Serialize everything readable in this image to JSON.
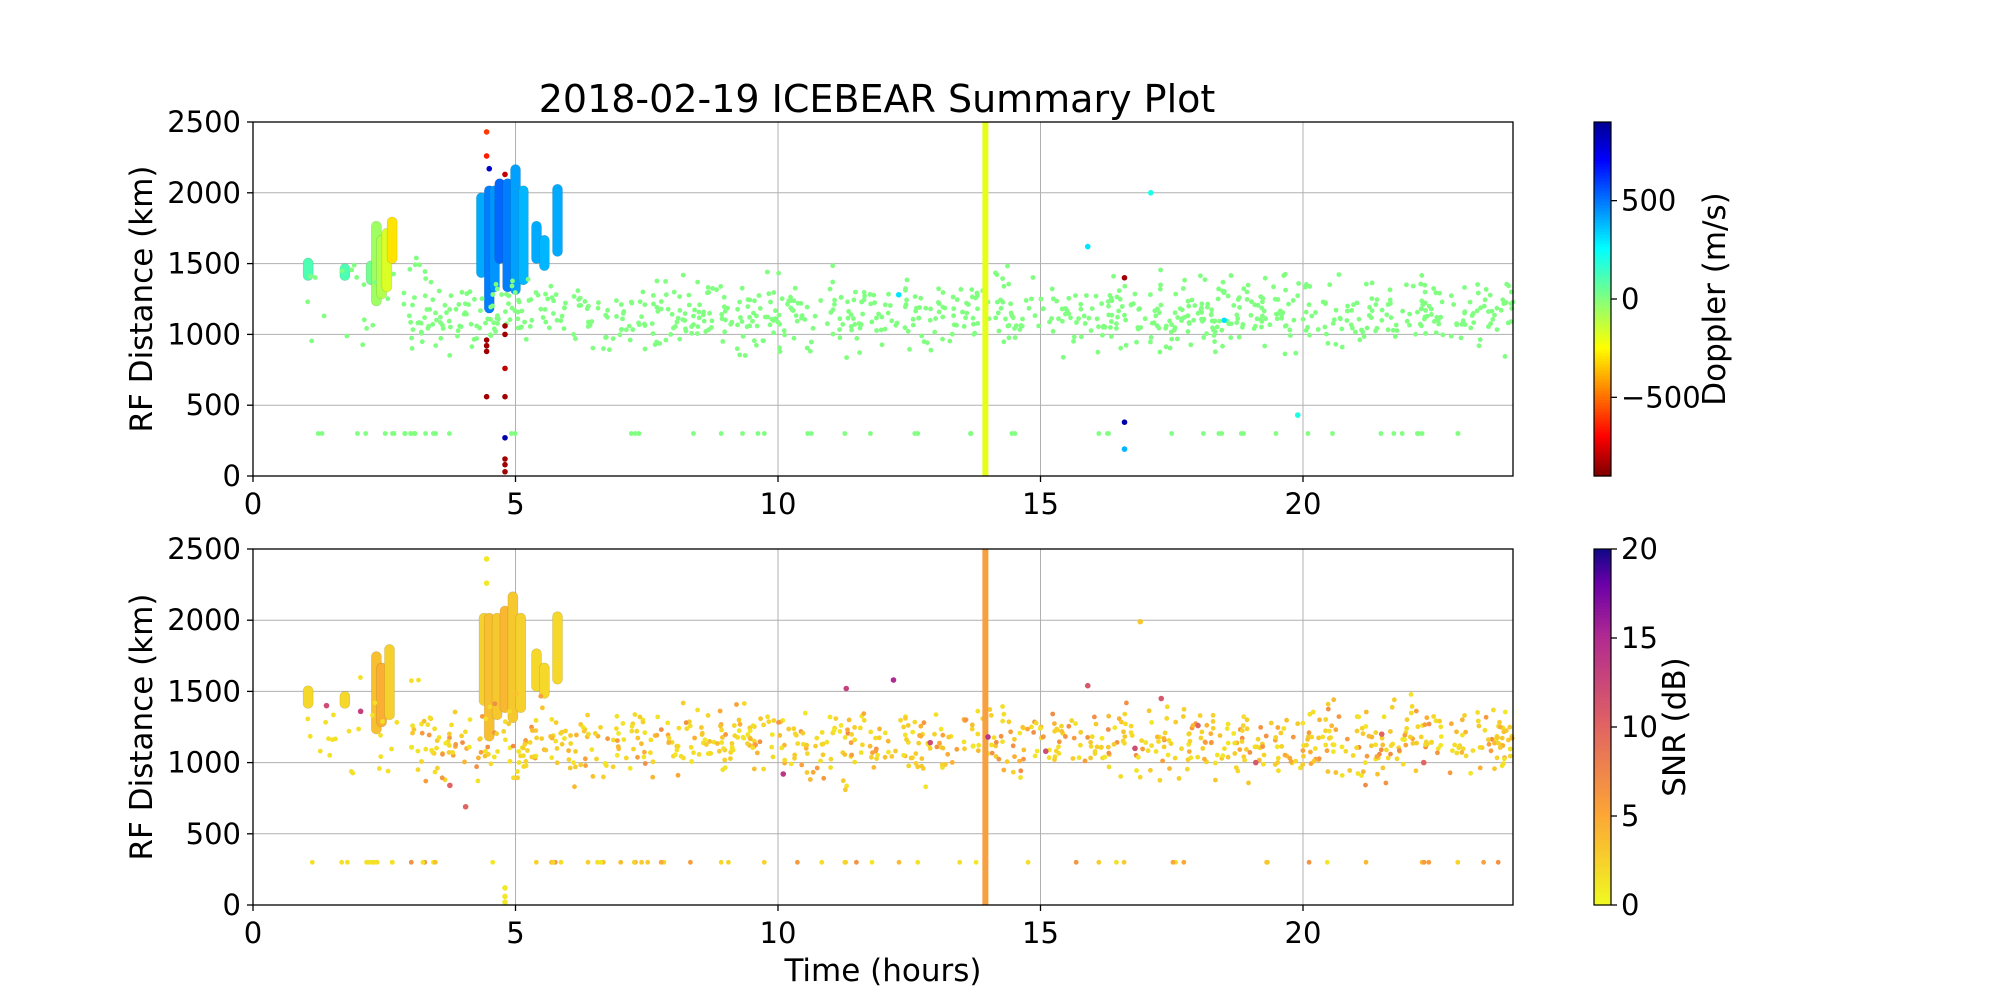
{
  "chart_data": [
    {
      "type": "scatter",
      "title": "2018-02-19 ICEBEAR Summary Plot",
      "xlabel": "",
      "ylabel": "RF Distance (km)",
      "xlim": [
        0,
        24
      ],
      "ylim": [
        0,
        2500
      ],
      "xticks": [
        0,
        5,
        10,
        15,
        20
      ],
      "yticks": [
        0,
        500,
        1000,
        1500,
        2000,
        2500
      ],
      "grid": true,
      "colormap": "jet_r",
      "colorbar": {
        "label": "Doppler (m/s)",
        "range": [
          -900,
          900
        ],
        "ticks": [
          -500,
          0,
          500
        ],
        "tick_labels": [
          "−500",
          "0",
          "500"
        ]
      },
      "background_color": "#80ff80",
      "vertical_line": {
        "x": 13.95,
        "color": "#e6ff1a"
      },
      "clusters": [
        {
          "x": 1.05,
          "ymin": 1380,
          "ymax": 1540,
          "value": 100
        },
        {
          "x": 1.75,
          "ymin": 1380,
          "ymax": 1500,
          "value": 100
        },
        {
          "x": 2.25,
          "ymin": 1350,
          "ymax": 1520,
          "value": 30
        },
        {
          "x": 2.35,
          "ymin": 1200,
          "ymax": 1800,
          "value": -60
        },
        {
          "x": 2.45,
          "ymin": 1250,
          "ymax": 1700,
          "value": -100
        },
        {
          "x": 2.55,
          "ymin": 1300,
          "ymax": 1750,
          "value": -180
        },
        {
          "x": 2.65,
          "ymin": 1500,
          "ymax": 1830,
          "value": -300
        },
        {
          "x": 4.35,
          "ymin": 1400,
          "ymax": 2000,
          "value": 400
        },
        {
          "x": 4.5,
          "ymin": 1150,
          "ymax": 2050,
          "value": 480
        },
        {
          "x": 4.6,
          "ymin": 1300,
          "ymax": 2050,
          "value": 440
        },
        {
          "x": 4.7,
          "ymin": 1500,
          "ymax": 2100,
          "value": 520
        },
        {
          "x": 4.85,
          "ymin": 1300,
          "ymax": 2100,
          "value": 480
        },
        {
          "x": 5.0,
          "ymin": 1280,
          "ymax": 2200,
          "value": 420
        },
        {
          "x": 5.15,
          "ymin": 1350,
          "ymax": 2050,
          "value": 380
        },
        {
          "x": 5.4,
          "ymin": 1500,
          "ymax": 1800,
          "value": 400
        },
        {
          "x": 5.55,
          "ymin": 1450,
          "ymax": 1700,
          "value": 380
        },
        {
          "x": 5.8,
          "ymin": 1550,
          "ymax": 2060,
          "value": 400
        }
      ],
      "points": [
        {
          "x": 4.45,
          "y": 2430,
          "value": -600
        },
        {
          "x": 4.45,
          "y": 2260,
          "value": -650
        },
        {
          "x": 4.5,
          "y": 2170,
          "value": 800
        },
        {
          "x": 4.45,
          "y": 960,
          "value": -850
        },
        {
          "x": 4.45,
          "y": 920,
          "value": -850
        },
        {
          "x": 4.45,
          "y": 880,
          "value": -850
        },
        {
          "x": 4.45,
          "y": 560,
          "value": -850
        },
        {
          "x": 4.8,
          "y": 2130,
          "value": -800
        },
        {
          "x": 4.8,
          "y": 1060,
          "value": -850
        },
        {
          "x": 4.8,
          "y": 1000,
          "value": -850
        },
        {
          "x": 4.8,
          "y": 760,
          "value": -800
        },
        {
          "x": 4.8,
          "y": 560,
          "value": -850
        },
        {
          "x": 4.8,
          "y": 270,
          "value": 850
        },
        {
          "x": 4.8,
          "y": 120,
          "value": -850
        },
        {
          "x": 4.8,
          "y": 80,
          "value": -850
        },
        {
          "x": 4.8,
          "y": 30,
          "value": -850
        },
        {
          "x": 16.6,
          "y": 1400,
          "value": -850
        },
        {
          "x": 16.6,
          "y": 380,
          "value": 850
        },
        {
          "x": 16.6,
          "y": 190,
          "value": 380
        },
        {
          "x": 17.1,
          "y": 2000,
          "value": 200
        },
        {
          "x": 15.9,
          "y": 1620,
          "value": 300
        },
        {
          "x": 18.5,
          "y": 1100,
          "value": 300
        },
        {
          "x": 19.9,
          "y": 430,
          "value": 200
        },
        {
          "x": 12.3,
          "y": 1280,
          "value": 300
        }
      ]
    },
    {
      "type": "scatter",
      "title": "",
      "xlabel": "Time (hours)",
      "ylabel": "RF Distance (km)",
      "xlim": [
        0,
        24
      ],
      "ylim": [
        0,
        2500
      ],
      "xticks": [
        0,
        5,
        10,
        15,
        20
      ],
      "yticks": [
        0,
        500,
        1000,
        1500,
        2000,
        2500
      ],
      "grid": true,
      "colormap": "plasma_r",
      "colorbar": {
        "label": "SNR (dB)",
        "range": [
          0,
          20
        ],
        "ticks": [
          0,
          5,
          10,
          15,
          20
        ],
        "tick_labels": [
          "0",
          "5",
          "10",
          "15",
          "20"
        ]
      },
      "vertical_line": {
        "x": 13.95,
        "color": "#f7a040"
      },
      "clusters": [
        {
          "x": 1.05,
          "ymin": 1380,
          "ymax": 1540,
          "value": 2
        },
        {
          "x": 1.75,
          "ymin": 1380,
          "ymax": 1500,
          "value": 2
        },
        {
          "x": 2.35,
          "ymin": 1200,
          "ymax": 1780,
          "value": 3.5
        },
        {
          "x": 2.45,
          "ymin": 1250,
          "ymax": 1700,
          "value": 4.5
        },
        {
          "x": 2.6,
          "ymin": 1300,
          "ymax": 1830,
          "value": 2.5
        },
        {
          "x": 4.4,
          "ymin": 1400,
          "ymax": 2050,
          "value": 2.5
        },
        {
          "x": 4.5,
          "ymin": 1150,
          "ymax": 2050,
          "value": 3.5
        },
        {
          "x": 4.65,
          "ymin": 1300,
          "ymax": 2050,
          "value": 3
        },
        {
          "x": 4.8,
          "ymin": 1350,
          "ymax": 2100,
          "value": 4
        },
        {
          "x": 4.95,
          "ymin": 1280,
          "ymax": 2200,
          "value": 3
        },
        {
          "x": 5.1,
          "ymin": 1350,
          "ymax": 2050,
          "value": 2.5
        },
        {
          "x": 5.4,
          "ymin": 1500,
          "ymax": 1800,
          "value": 2
        },
        {
          "x": 5.55,
          "ymin": 1450,
          "ymax": 1700,
          "value": 2
        },
        {
          "x": 5.8,
          "ymin": 1550,
          "ymax": 2060,
          "value": 2
        }
      ],
      "points": [
        {
          "x": 4.45,
          "y": 2430,
          "value": 1
        },
        {
          "x": 4.45,
          "y": 2260,
          "value": 1
        },
        {
          "x": 4.8,
          "y": 120,
          "value": 1
        },
        {
          "x": 4.8,
          "y": 60,
          "value": 1
        },
        {
          "x": 4.8,
          "y": 20,
          "value": 1
        },
        {
          "x": 1.4,
          "y": 1400,
          "value": 12
        },
        {
          "x": 2.05,
          "y": 1360,
          "value": 13
        },
        {
          "x": 3.75,
          "y": 840,
          "value": 10
        },
        {
          "x": 4.05,
          "y": 690,
          "value": 10
        },
        {
          "x": 10.1,
          "y": 920,
          "value": 14
        },
        {
          "x": 11.3,
          "y": 1520,
          "value": 13
        },
        {
          "x": 12.2,
          "y": 1580,
          "value": 15
        },
        {
          "x": 12.9,
          "y": 1140,
          "value": 12
        },
        {
          "x": 14.0,
          "y": 1180,
          "value": 14
        },
        {
          "x": 15.1,
          "y": 1080,
          "value": 12
        },
        {
          "x": 15.9,
          "y": 1540,
          "value": 11
        },
        {
          "x": 16.8,
          "y": 1100,
          "value": 12
        },
        {
          "x": 17.3,
          "y": 1450,
          "value": 11
        },
        {
          "x": 18.0,
          "y": 1260,
          "value": 10
        },
        {
          "x": 19.1,
          "y": 1000,
          "value": 11
        },
        {
          "x": 21.5,
          "y": 1200,
          "value": 10
        },
        {
          "x": 22.3,
          "y": 1000,
          "value": 10
        },
        {
          "x": 16.9,
          "y": 1990,
          "value": 3
        }
      ]
    }
  ]
}
